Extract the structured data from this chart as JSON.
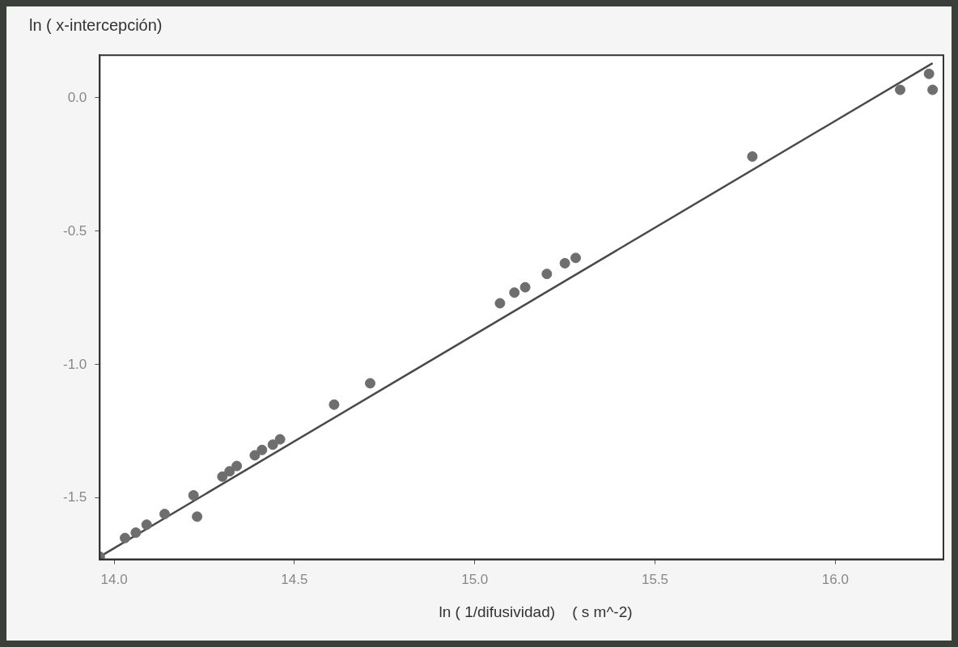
{
  "chart_data": {
    "type": "scatter",
    "xlabel": "ln ( 1/difusividad)    ( s m^-2)",
    "ylabel": "ln ( x-intercepción)",
    "xlim": [
      13.96,
      16.3
    ],
    "ylim": [
      -1.73,
      0.16
    ],
    "xticks": [
      {
        "value": 14,
        "label": "14.0"
      },
      {
        "value": 14.5,
        "label": "14.5"
      },
      {
        "value": 15,
        "label": "15.0"
      },
      {
        "value": 15.5,
        "label": "15.5"
      },
      {
        "value": 16,
        "label": "16.0"
      }
    ],
    "yticks": [
      {
        "value": 0,
        "label": "0.0"
      },
      {
        "value": -0.5,
        "label": "-0.5"
      },
      {
        "value": -1,
        "label": "-1.0"
      },
      {
        "value": -1.5,
        "label": "-1.5"
      }
    ],
    "grid": false,
    "legend": false,
    "marker": "circle",
    "series": [
      {
        "color": "#6e6e6e",
        "x": [
          13.96,
          14.03,
          14.06,
          14.09,
          14.14,
          14.22,
          14.23,
          14.3,
          14.32,
          14.34,
          14.39,
          14.41,
          14.44,
          14.46,
          14.61,
          14.71,
          15.07,
          15.11,
          15.14,
          15.2,
          15.25,
          15.28,
          15.77,
          16.18,
          16.26,
          16.27
        ],
        "values": [
          -1.72,
          -1.65,
          -1.63,
          -1.6,
          -1.56,
          -1.49,
          -1.57,
          -1.42,
          -1.4,
          -1.38,
          -1.34,
          -1.32,
          -1.3,
          -1.28,
          -1.15,
          -1.07,
          -0.77,
          -0.73,
          -0.71,
          -0.66,
          -0.62,
          -0.6,
          -0.22,
          0.03,
          0.09,
          0.03
        ]
      },
      {
        "type": "line",
        "color": "#4a4a4a",
        "line_style": "solid",
        "marker": "none",
        "x": [
          13.96,
          16.27
        ],
        "values": [
          -1.72,
          0.13
        ]
      }
    ]
  }
}
